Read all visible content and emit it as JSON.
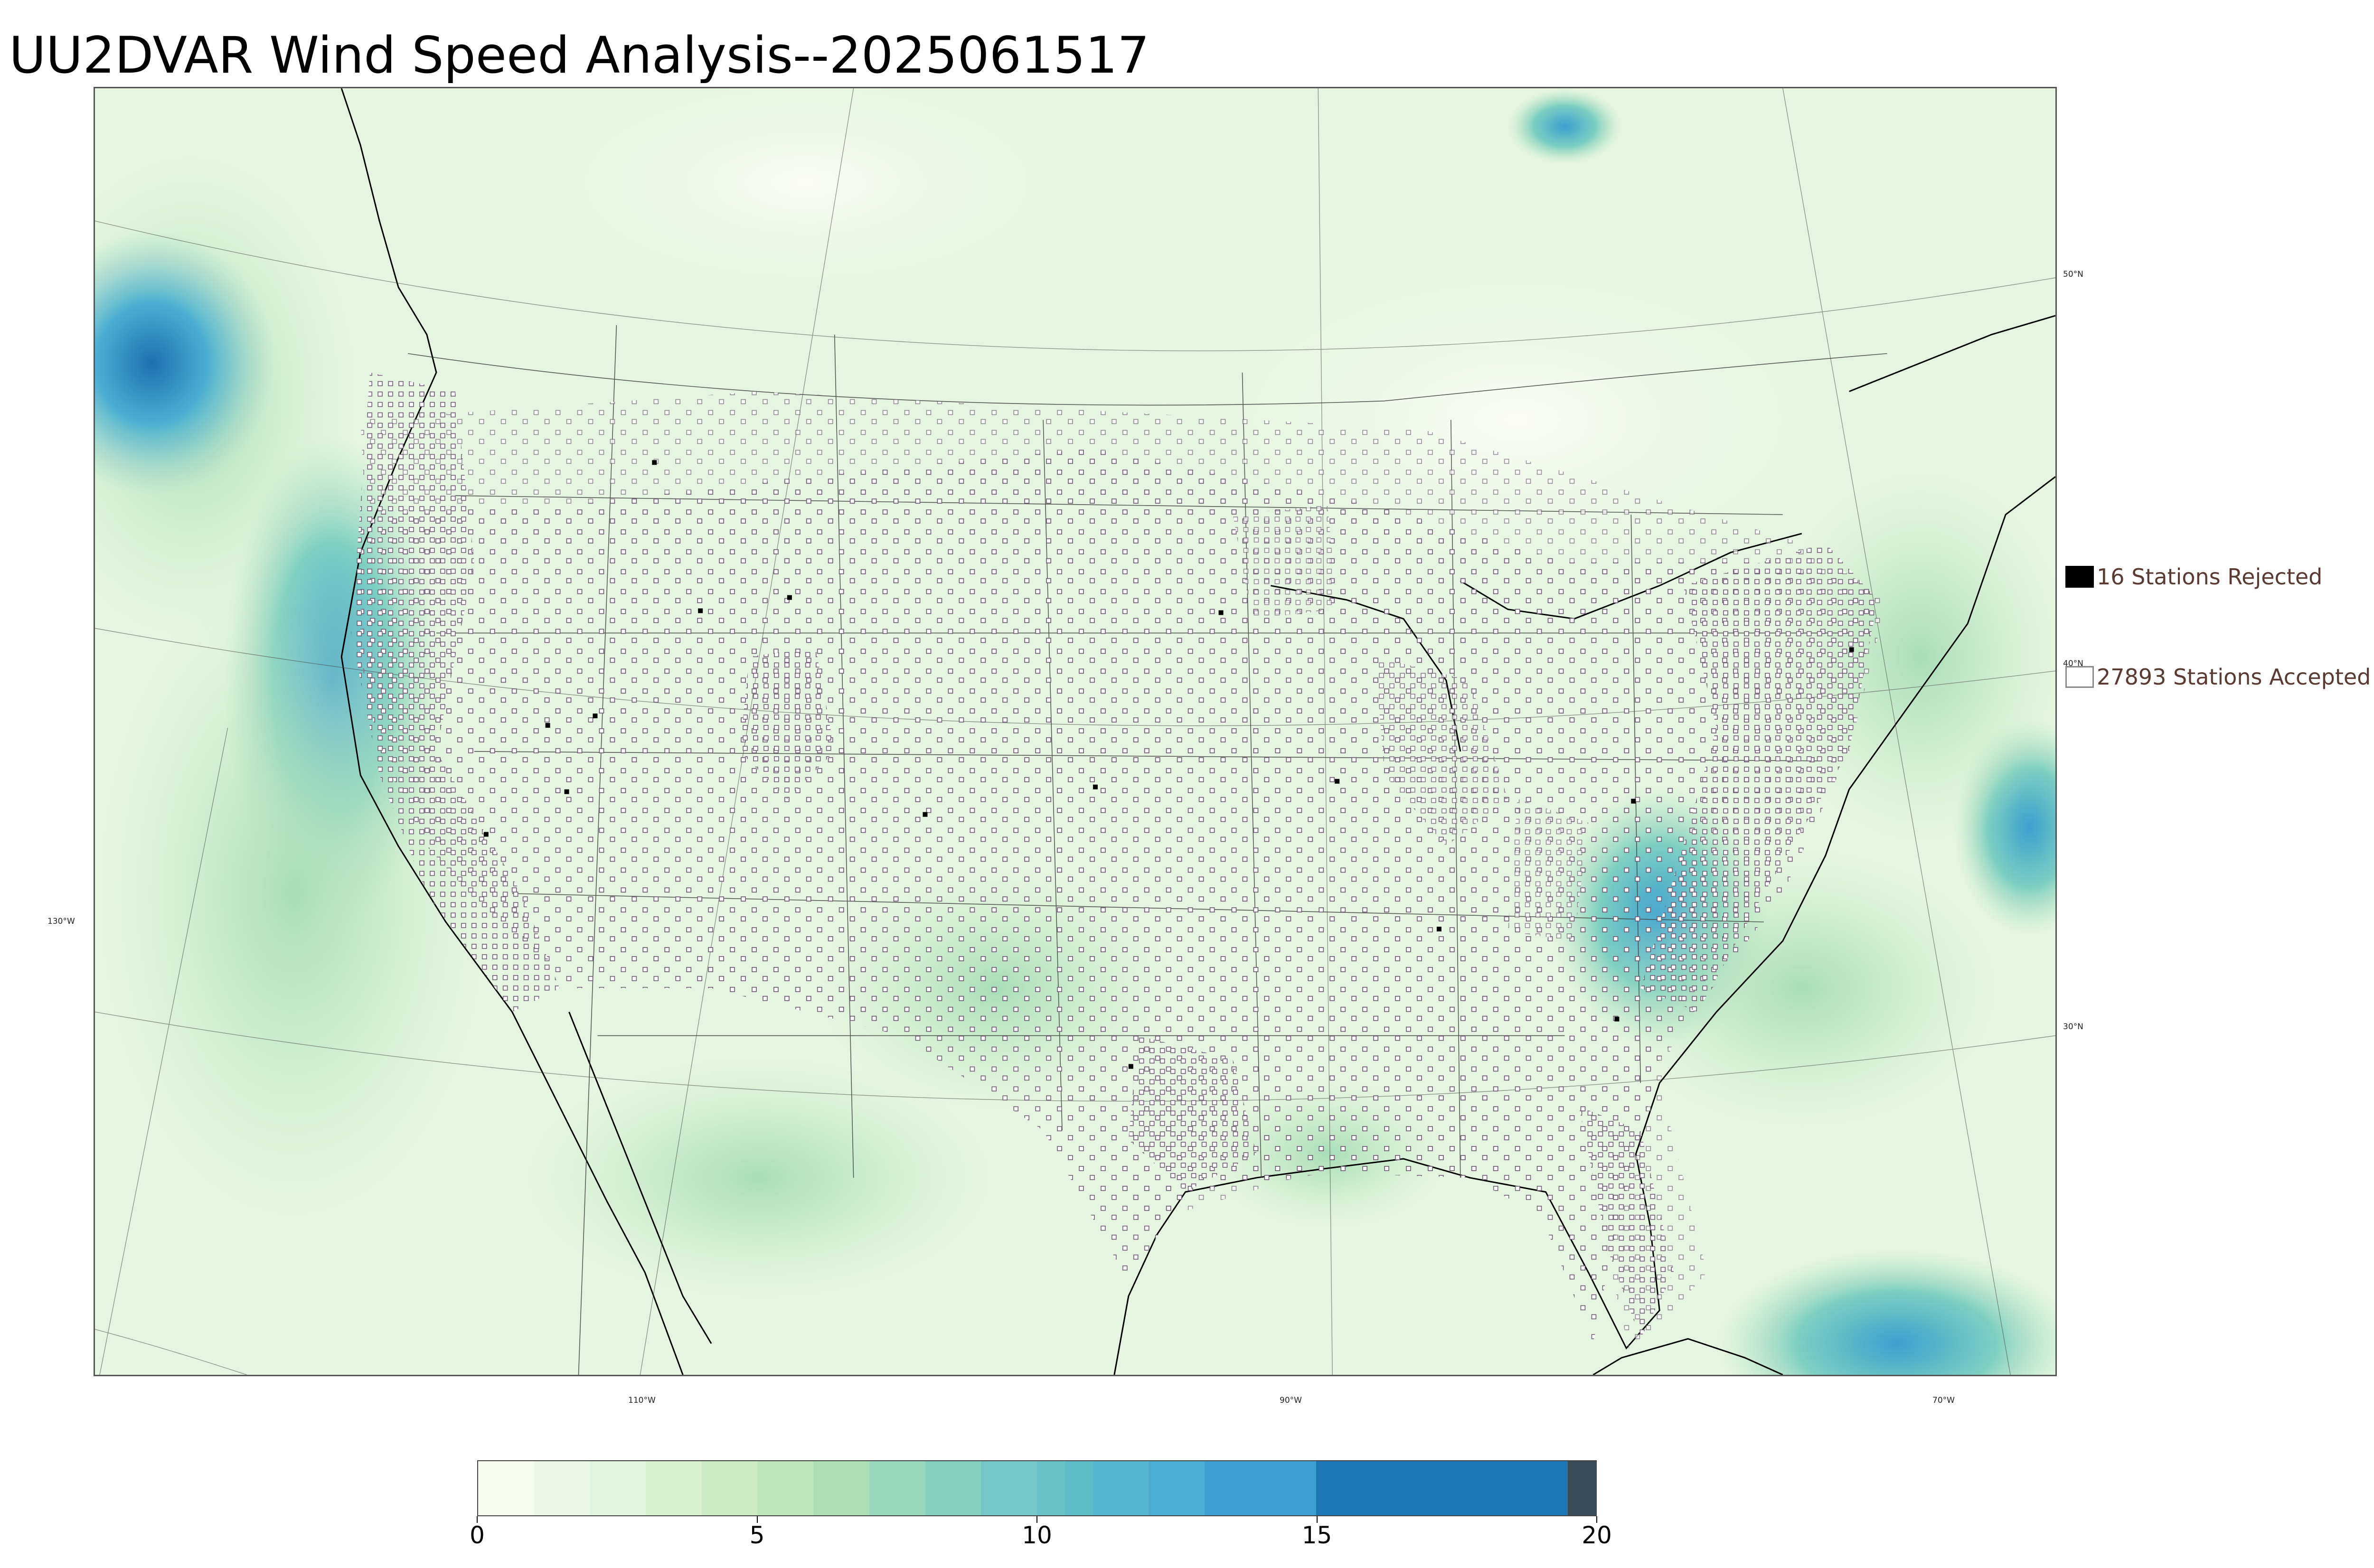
{
  "title": "UU2DVAR Wind Speed Analysis--2025061517",
  "map": {
    "projection": "Lambert conformal conic (CONUS)",
    "lat_labels": [
      "50°N",
      "40°N",
      "30°N"
    ],
    "lon_labels": [
      "130°W",
      "110°W",
      "90°W",
      "70°W"
    ],
    "background_color": "#ecf7e8",
    "coastline_color": "#000000",
    "border_color": "#333333"
  },
  "legend": {
    "rejected": {
      "label": "16 Stations Rejected",
      "count": 16,
      "swatch_color": "#000000",
      "icon": "filled-square-icon"
    },
    "accepted": {
      "label": "27893 Stations Accepted",
      "count": 27893,
      "swatch_color": "#ffffff",
      "icon": "hollow-square-icon"
    }
  },
  "colorbar": {
    "min": 0,
    "max": 20,
    "tick_values": [
      0,
      5,
      10,
      15,
      20
    ],
    "tick_labels": [
      "0",
      "5",
      "10",
      "15",
      "20"
    ],
    "colormap": [
      {
        "from": 0,
        "to": 1,
        "color": "#f7fcf0"
      },
      {
        "from": 1,
        "to": 2,
        "color": "#eef8e8"
      },
      {
        "from": 2,
        "to": 3,
        "color": "#e3f4de"
      },
      {
        "from": 3,
        "to": 4,
        "color": "#d9f0d3"
      },
      {
        "from": 4,
        "to": 5,
        "color": "#cdebc7"
      },
      {
        "from": 5,
        "to": 6,
        "color": "#bfe6bd"
      },
      {
        "from": 6,
        "to": 7,
        "color": "#addfb7"
      },
      {
        "from": 7,
        "to": 8,
        "color": "#9ad8bd"
      },
      {
        "from": 8,
        "to": 9,
        "color": "#86d0c0"
      },
      {
        "from": 9,
        "to": 10,
        "color": "#74c7c4"
      },
      {
        "from": 10,
        "to": 10.5,
        "color": "#6ac1c6"
      },
      {
        "from": 10.5,
        "to": 11,
        "color": "#60bbc9"
      },
      {
        "from": 11,
        "to": 12,
        "color": "#57b5cf"
      },
      {
        "from": 12,
        "to": 13,
        "color": "#4aaed3"
      },
      {
        "from": 13,
        "to": 15,
        "color": "#3d9fd0"
      },
      {
        "from": 15,
        "to": 19.5,
        "color": "#1f78b4"
      },
      {
        "from": 19.5,
        "to": 20,
        "color": "#3a4a56"
      }
    ]
  }
}
